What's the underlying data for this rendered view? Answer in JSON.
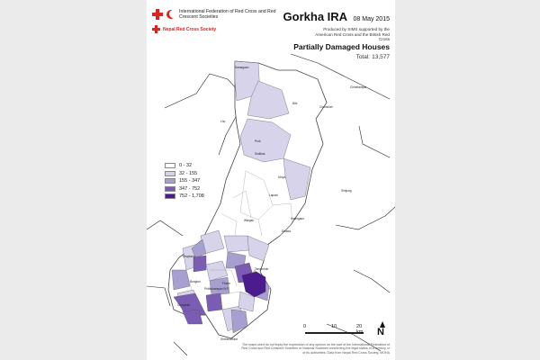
{
  "ifrc": {
    "name": "International Federation of Red Cross and Red Crescent Societies"
  },
  "nrcs": {
    "name": "Nepal Red Cross Society"
  },
  "header": {
    "title": "Gorkha IRA",
    "date": "08 May 2015",
    "credit": "Produced by SIMS supported by the American Red Cross and the British Red Cross"
  },
  "map": {
    "subtitle": "Partially Damaged Houses",
    "total_label": "Total:",
    "total_value": "13,577",
    "legend": [
      {
        "label": "0 - 32",
        "color": "#ffffff"
      },
      {
        "label": "32 - 155",
        "color": "#d6d3ea"
      },
      {
        "label": "155 - 347",
        "color": "#a79fd0"
      },
      {
        "label": "347 - 752",
        "color": "#7a5cb5"
      },
      {
        "label": "752 - 1,708",
        "color": "#4b1c8e"
      }
    ],
    "scale": {
      "zero": "0",
      "mid": "10",
      "end": "20 km"
    },
    "north": "N",
    "place_labels": [
      "Samagaun",
      "Lho",
      "Prok",
      "Sirdibas",
      "Chhekampar",
      "Bihi",
      "Chumchet",
      "Uhiya",
      "Kashigaun",
      "Simjung",
      "Laprak",
      "Warpak",
      "Dhawa",
      "Khoplang",
      "Bungkot",
      "Chhoprak",
      "Prithbinarayan N.P.",
      "Tanglichok",
      "Finam",
      "Shreenathkot"
    ]
  },
  "disclaimer": "The maps used do not imply the expression of any opinion on the part of the International Federation of Red Cross and Red Crescent Societies or National Societies concerning the legal status of a territory or of its authorities. Data from Nepal Red Cross Society, MOHA"
}
